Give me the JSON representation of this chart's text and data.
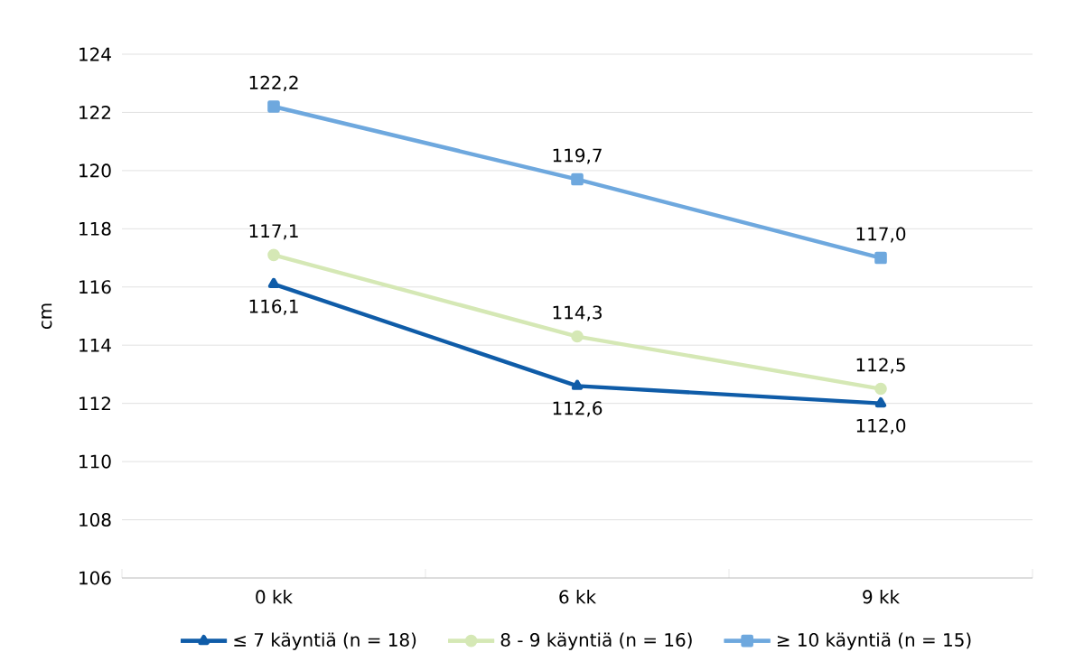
{
  "chart_data": {
    "type": "line",
    "ylabel": "cm",
    "categories": [
      "0 kk",
      "6 kk",
      "9 kk"
    ],
    "ylim": [
      106,
      124
    ],
    "yticks": [
      106,
      108,
      110,
      112,
      114,
      116,
      118,
      120,
      122,
      124
    ],
    "grid": "y",
    "legend": "bottom",
    "series": [
      {
        "name": "≤ 7 käyntiä (n = 18)",
        "color": "#0f5ca8",
        "marker": "triangle",
        "values": [
          116.1,
          112.6,
          112.0
        ],
        "value_labels": [
          "116,1",
          "112,6",
          "112,0"
        ]
      },
      {
        "name": "8 - 9 käyntiä (n = 16)",
        "color": "#d5e8b5",
        "marker": "circle",
        "values": [
          117.1,
          114.3,
          112.5
        ],
        "value_labels": [
          "117,1",
          "114,3",
          "112,5"
        ]
      },
      {
        "name": "≥ 10 käyntiä (n = 15)",
        "color": "#6ea8de",
        "marker": "square",
        "values": [
          122.2,
          119.7,
          117.0
        ],
        "value_labels": [
          "122,2",
          "119,7",
          "117,0"
        ]
      }
    ]
  }
}
